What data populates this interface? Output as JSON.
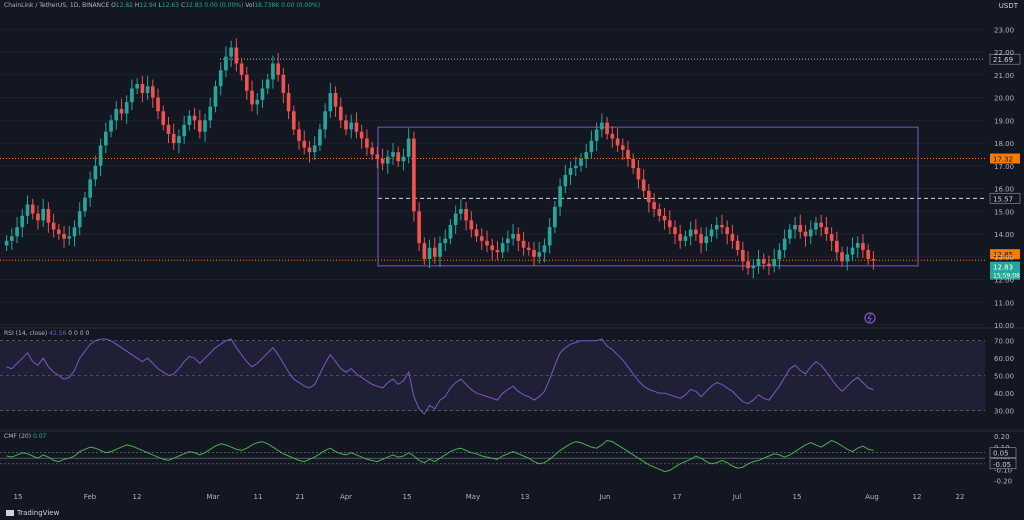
{
  "header": {
    "symbol": "ChainLink / TetherUS, 1D, BINANCE",
    "o_label": "O",
    "o_val": "12.82",
    "h_label": "H",
    "h_val": "12.94",
    "l_label": "L",
    "l_val": "12.63",
    "c_label": "C",
    "c_val": "12.83",
    "chg": "0.00 (0.00%)",
    "vol_label": "Vol",
    "vol_val": "18.738K",
    "vol_chg": "0.00 (0.00%)",
    "currency": "USDT"
  },
  "rsi_header": {
    "label": "RSI (14, close)",
    "value": "42.56",
    "extra": "0 0 0 0"
  },
  "cmf_header": {
    "label": "CMF (20)",
    "value": "0.07"
  },
  "footer": {
    "brand": "TradingView"
  },
  "colors": {
    "up": "#26a69a",
    "down": "#ef5350",
    "rect": "#7e57c2",
    "level_orange": "#f57c00",
    "rsi": "#7e57c2",
    "cmf": "#4caf50",
    "bg": "#131722",
    "axis_text": "#b2b5be"
  },
  "price_axis": {
    "ticks": [
      "23.00",
      "22.00",
      "21.00",
      "20.00",
      "19.00",
      "18.00",
      "17.00",
      "16.00",
      "15.00",
      "14.00",
      "13.00",
      "12.00",
      "11.00",
      "10.00"
    ]
  },
  "rsi_axis": {
    "ticks": [
      "70.00",
      "60.00",
      "50.00",
      "40.00",
      "30.00"
    ]
  },
  "cmf_axis": {
    "ticks": [
      "0.20",
      "0.10",
      "0.00",
      "-0.10",
      "-0.20"
    ]
  },
  "time_axis": {
    "labels": [
      "15",
      "Feb",
      "12",
      "Mar",
      "11",
      "21",
      "Apr",
      "15",
      "May",
      "13",
      "Jun",
      "17",
      "Jul",
      "15",
      "Aug",
      "12",
      "22"
    ]
  },
  "chart_data": {
    "type": "candlestick",
    "title": "ChainLink / TetherUS, 1D, BINANCE",
    "y_range": [
      10,
      23.5
    ],
    "levels": [
      {
        "value": 21.69,
        "label": "21.69",
        "style": "dotted"
      },
      {
        "value": 17.32,
        "label": "17.32",
        "style": "dotted-orange"
      },
      {
        "value": 15.57,
        "label": "15.57",
        "style": "dashed-white"
      },
      {
        "value": 12.85,
        "label": "12.85",
        "style": "dotted-orange"
      },
      {
        "value": 12.83,
        "label": "12.83",
        "style": "current",
        "countdown": "15:59:08"
      }
    ],
    "range_box": {
      "top": 18.7,
      "bottom": 12.6,
      "from_label": "Apr",
      "to_label": "Aug"
    },
    "closes": [
      13.7,
      13.9,
      14.3,
      14.8,
      15.3,
      14.9,
      14.6,
      15.1,
      14.5,
      14.2,
      14.0,
      13.8,
      13.9,
      14.3,
      15.0,
      15.6,
      16.4,
      17.0,
      17.9,
      18.5,
      19.0,
      19.5,
      19.3,
      19.8,
      20.4,
      20.6,
      20.2,
      20.5,
      20.0,
      19.4,
      18.8,
      18.4,
      18.0,
      18.3,
      18.8,
      19.2,
      19.0,
      18.5,
      19.0,
      19.6,
      20.5,
      21.2,
      21.8,
      22.2,
      21.5,
      21.0,
      20.3,
      19.7,
      19.9,
      20.4,
      20.8,
      21.5,
      21.0,
      20.2,
      19.4,
      18.6,
      18.1,
      17.8,
      17.6,
      17.9,
      18.6,
      19.4,
      20.2,
      19.6,
      19.0,
      18.6,
      18.9,
      18.5,
      18.2,
      17.8,
      17.5,
      17.3,
      17.1,
      17.4,
      17.6,
      17.2,
      17.4,
      18.2,
      15.0,
      13.6,
      12.9,
      13.4,
      13.0,
      13.6,
      13.8,
      14.4,
      14.9,
      15.1,
      14.6,
      14.2,
      13.9,
      13.7,
      13.5,
      13.3,
      13.2,
      13.6,
      13.8,
      14.0,
      13.7,
      13.4,
      13.3,
      13.0,
      13.2,
      13.5,
      14.3,
      15.2,
      16.1,
      16.6,
      16.9,
      17.0,
      17.3,
      17.6,
      18.1,
      18.6,
      18.9,
      18.4,
      18.2,
      17.9,
      17.7,
      17.3,
      16.9,
      16.4,
      15.9,
      15.4,
      15.1,
      14.8,
      14.6,
      14.3,
      14.0,
      13.7,
      13.9,
      14.2,
      14.0,
      13.6,
      13.9,
      14.2,
      14.4,
      14.3,
      14.0,
      13.7,
      13.3,
      12.8,
      12.5,
      12.6,
      12.9,
      12.7,
      12.6,
      12.9,
      13.3,
      13.8,
      14.2,
      14.4,
      14.1,
      13.9,
      14.2,
      14.5,
      14.3,
      14.0,
      13.7,
      13.2,
      12.8,
      13.1,
      13.4,
      13.6,
      13.3,
      12.9,
      12.83
    ],
    "rsi_values": [
      55,
      54,
      57,
      60,
      63,
      58,
      56,
      60,
      55,
      52,
      50,
      48,
      49,
      53,
      60,
      64,
      68,
      70,
      71,
      71,
      70,
      68,
      66,
      64,
      62,
      60,
      58,
      60,
      57,
      54,
      52,
      50,
      51,
      54,
      58,
      61,
      60,
      57,
      60,
      63,
      66,
      68,
      70,
      71,
      66,
      62,
      58,
      55,
      57,
      60,
      63,
      66,
      62,
      57,
      52,
      48,
      46,
      44,
      43,
      45,
      51,
      57,
      62,
      58,
      54,
      52,
      54,
      51,
      49,
      47,
      45,
      44,
      43,
      46,
      48,
      45,
      47,
      52,
      38,
      31,
      28,
      33,
      31,
      36,
      38,
      43,
      46,
      48,
      45,
      42,
      40,
      39,
      38,
      37,
      36,
      40,
      42,
      44,
      41,
      39,
      38,
      36,
      38,
      41,
      48,
      56,
      63,
      66,
      68,
      69,
      70,
      70,
      70,
      70,
      71,
      67,
      65,
      62,
      59,
      55,
      51,
      47,
      44,
      42,
      41,
      40,
      40,
      39,
      38,
      37,
      39,
      42,
      41,
      38,
      41,
      44,
      46,
      45,
      43,
      41,
      38,
      35,
      34,
      36,
      39,
      37,
      36,
      40,
      44,
      49,
      54,
      56,
      53,
      51,
      55,
      58,
      56,
      52,
      48,
      44,
      41,
      44,
      47,
      49,
      46,
      43,
      42
    ],
    "cmf_values": [
      0.02,
      0.01,
      0.03,
      0.05,
      0.04,
      0.02,
      0.0,
      0.03,
      0.01,
      -0.02,
      -0.03,
      -0.01,
      0.0,
      0.02,
      0.06,
      0.08,
      0.1,
      0.09,
      0.07,
      0.05,
      0.06,
      0.08,
      0.1,
      0.12,
      0.11,
      0.09,
      0.07,
      0.05,
      0.03,
      0.01,
      -0.01,
      -0.02,
      0.0,
      0.02,
      0.04,
      0.06,
      0.05,
      0.03,
      0.05,
      0.08,
      0.11,
      0.13,
      0.12,
      0.1,
      0.08,
      0.07,
      0.09,
      0.12,
      0.14,
      0.15,
      0.13,
      0.1,
      0.07,
      0.04,
      0.02,
      0.0,
      -0.02,
      -0.03,
      -0.01,
      0.01,
      0.04,
      0.07,
      0.09,
      0.06,
      0.04,
      0.03,
      0.05,
      0.03,
      0.01,
      -0.01,
      -0.02,
      -0.03,
      -0.01,
      0.01,
      0.03,
      0.01,
      0.02,
      0.05,
      0.02,
      -0.02,
      -0.04,
      -0.01,
      -0.03,
      0.0,
      0.03,
      0.06,
      0.08,
      0.09,
      0.07,
      0.05,
      0.04,
      0.02,
      0.01,
      0.0,
      -0.01,
      0.02,
      0.04,
      0.06,
      0.04,
      0.02,
      0.0,
      -0.03,
      -0.05,
      -0.04,
      -0.01,
      0.03,
      0.07,
      0.1,
      0.13,
      0.15,
      0.14,
      0.12,
      0.1,
      0.09,
      0.12,
      0.16,
      0.15,
      0.12,
      0.09,
      0.06,
      0.03,
      0.0,
      -0.03,
      -0.06,
      -0.08,
      -0.1,
      -0.12,
      -0.11,
      -0.08,
      -0.05,
      -0.03,
      -0.01,
      0.02,
      0.0,
      -0.03,
      -0.05,
      -0.04,
      -0.02,
      -0.04,
      -0.07,
      -0.09,
      -0.08,
      -0.05,
      -0.03,
      -0.02,
      0.0,
      0.02,
      0.04,
      0.03,
      0.01,
      0.03,
      0.06,
      0.09,
      0.12,
      0.14,
      0.12,
      0.1,
      0.13,
      0.16,
      0.14,
      0.11,
      0.08,
      0.06,
      0.09,
      0.11,
      0.08,
      0.07
    ]
  }
}
